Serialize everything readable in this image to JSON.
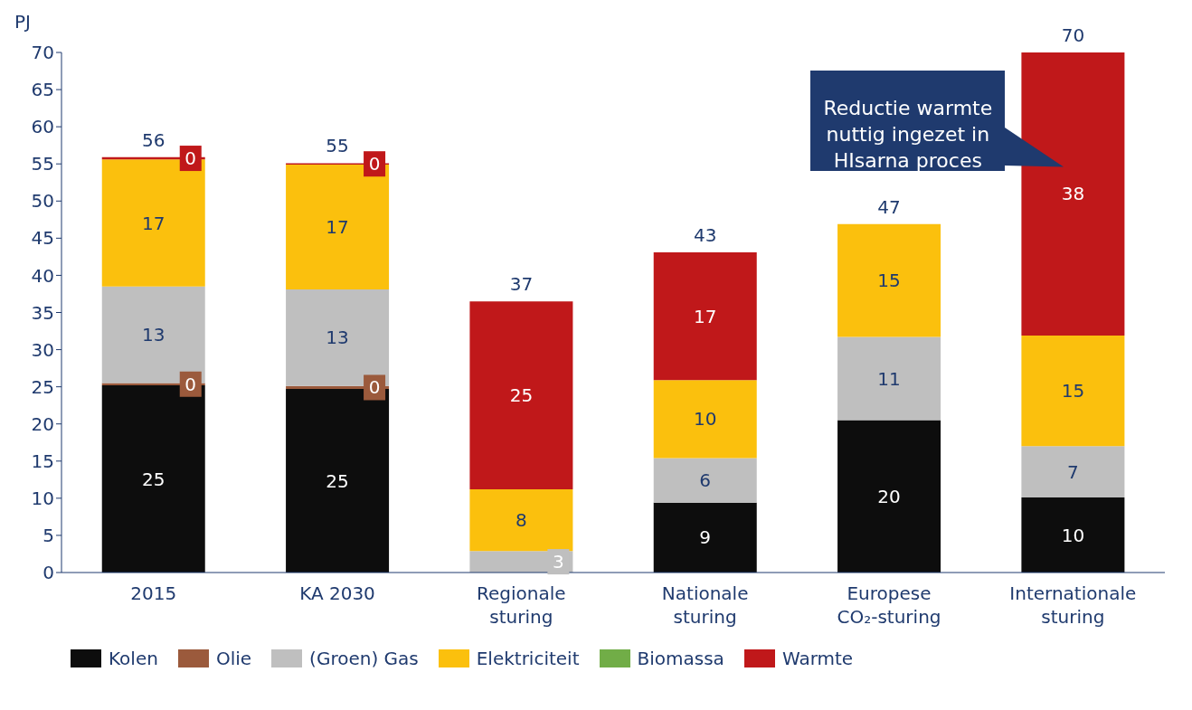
{
  "chart_data": {
    "type": "bar",
    "stacked": true,
    "ylabel": "PJ",
    "categories": [
      "2015",
      "KA 2030",
      "Regionale sturing",
      "Nationale sturing",
      "Europese CO₂-sturing",
      "Internationale sturing"
    ],
    "series": [
      {
        "name": "Kolen",
        "color": "#0d0d0d",
        "values": [
          25.2,
          24.7,
          0,
          9.4,
          20.5,
          10.1
        ],
        "value_labels": [
          "25",
          "25",
          null,
          "9",
          "20",
          "10"
        ]
      },
      {
        "name": "Olie",
        "color": "#9b5a3c",
        "values": [
          0.3,
          0.4,
          0,
          0,
          0,
          0
        ],
        "value_labels": [
          "0",
          "0",
          null,
          null,
          null,
          null
        ]
      },
      {
        "name": "(Groen) Gas",
        "color": "#bfbfbf",
        "values": [
          13.0,
          13.0,
          2.9,
          6.0,
          11.2,
          6.9
        ],
        "value_labels": [
          "13",
          "13",
          "3",
          "6",
          "11",
          "7"
        ]
      },
      {
        "name": "Elektriciteit",
        "color": "#fbc00d",
        "values": [
          17.1,
          16.8,
          8.3,
          10.5,
          15.2,
          14.9
        ],
        "value_labels": [
          "17",
          "17",
          "8",
          "10",
          "15",
          "15"
        ]
      },
      {
        "name": "Biomassa",
        "color": "#71ad47",
        "values": [
          0,
          0,
          0,
          0,
          0,
          0
        ]
      },
      {
        "name": "Warmte",
        "color": "#c0181a",
        "values": [
          0.3,
          0.2,
          25.3,
          17.2,
          0,
          38.1
        ],
        "value_labels": [
          "0",
          "0",
          "25",
          "17",
          null,
          "38"
        ]
      }
    ],
    "totals": [
      "56",
      "55",
      "37",
      "43",
      "47",
      "70"
    ],
    "ylim": [
      0,
      70
    ],
    "yticks": [
      0,
      5,
      10,
      15,
      20,
      25,
      30,
      35,
      40,
      45,
      50,
      55,
      60,
      65,
      70
    ],
    "grid": false,
    "legend": "bottom",
    "annotations": [
      "Reductie warmte nuttig ingezet in HIsarna proces"
    ]
  }
}
